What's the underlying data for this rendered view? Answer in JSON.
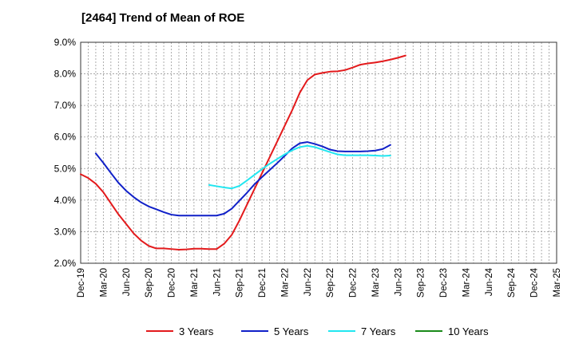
{
  "chart_data": {
    "type": "line",
    "title": "[2464]  Trend of Mean of ROE",
    "xlabel": "",
    "ylabel": "",
    "x_ticks": [
      "Dec-19",
      "Mar-20",
      "Jun-20",
      "Sep-20",
      "Dec-20",
      "Mar-21",
      "Jun-21",
      "Sep-21",
      "Dec-21",
      "Mar-22",
      "Jun-22",
      "Sep-22",
      "Dec-22",
      "Mar-23",
      "Jun-23",
      "Sep-23",
      "Dec-23",
      "Mar-24",
      "Jun-24",
      "Sep-24",
      "Dec-24",
      "Mar-25"
    ],
    "y_ticks": [
      "2.0%",
      "3.0%",
      "4.0%",
      "5.0%",
      "6.0%",
      "7.0%",
      "8.0%",
      "9.0%"
    ],
    "ylim": [
      2.0,
      9.0
    ],
    "grid": true,
    "legend_position": "bottom",
    "series": [
      {
        "name": "3 Years",
        "color": "#e31a1c",
        "values": [
          4.82,
          4.7,
          4.52,
          4.25,
          3.9,
          3.55,
          3.25,
          2.95,
          2.72,
          2.55,
          2.47,
          2.47,
          2.45,
          2.43,
          2.44,
          2.46,
          2.46,
          2.45,
          2.45,
          2.62,
          2.9,
          3.35,
          3.85,
          4.35,
          4.85,
          5.35,
          5.85,
          6.35,
          6.85,
          7.4,
          7.8,
          7.98,
          8.03,
          8.07,
          8.08,
          8.12,
          8.2,
          8.29,
          8.33,
          8.36,
          8.4,
          8.45,
          8.51,
          8.58
        ]
      },
      {
        "name": "5 Years",
        "color": "#1020c8",
        "values": [
          null,
          null,
          5.48,
          5.18,
          4.86,
          4.55,
          4.3,
          4.1,
          3.93,
          3.8,
          3.71,
          3.62,
          3.54,
          3.51,
          3.51,
          3.51,
          3.51,
          3.51,
          3.51,
          3.57,
          3.73,
          3.98,
          4.23,
          4.5,
          4.73,
          4.95,
          5.17,
          5.4,
          5.64,
          5.8,
          5.84,
          5.78,
          5.7,
          5.6,
          5.55,
          5.54,
          5.54,
          5.54,
          5.55,
          5.57,
          5.62,
          5.75
        ]
      },
      {
        "name": "7 Years",
        "color": "#22e6f0",
        "values": [
          null,
          null,
          null,
          null,
          null,
          null,
          null,
          null,
          null,
          null,
          null,
          null,
          null,
          null,
          null,
          null,
          null,
          4.48,
          4.44,
          4.4,
          4.37,
          4.45,
          4.62,
          4.8,
          4.98,
          5.15,
          5.3,
          5.45,
          5.58,
          5.68,
          5.72,
          5.68,
          5.6,
          5.52,
          5.45,
          5.42,
          5.42,
          5.42,
          5.42,
          5.41,
          5.4,
          5.41
        ]
      },
      {
        "name": "10 Years",
        "color": "#1a8a1a",
        "values": []
      }
    ]
  }
}
